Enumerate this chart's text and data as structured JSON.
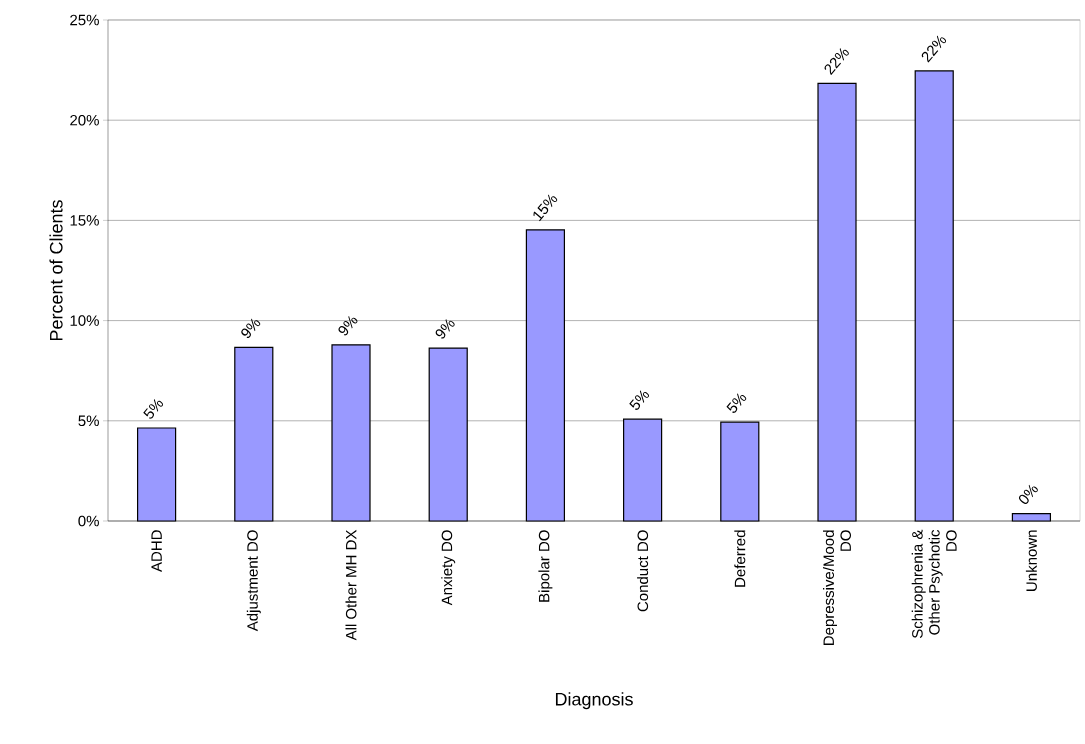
{
  "chart_data": {
    "type": "bar",
    "xlabel": "Diagnosis",
    "ylabel": "Percent of Clients",
    "categories": [
      "ADHD",
      "Adjustment DO",
      "All Other MH DX",
      "Anxiety DO",
      "Bipolar DO",
      "Conduct DO",
      "Deferred",
      "Depressive/Mood DO",
      "Schizophrenia & Other Psychotic DO",
      "Unknown"
    ],
    "values": [
      4.64,
      8.66,
      8.79,
      8.63,
      14.53,
      5.08,
      4.93,
      21.84,
      22.46,
      0.37
    ],
    "value_labels": [
      "5%",
      "9%",
      "9%",
      "9%",
      "15%",
      "5%",
      "5%",
      "22%",
      "22%",
      "0%"
    ],
    "color": "#9999ff",
    "ylim": [
      0,
      25
    ],
    "yticks": [
      {
        "value": 0,
        "label": "0%"
      },
      {
        "value": 5,
        "label": "5%"
      },
      {
        "value": 10,
        "label": "10%"
      },
      {
        "value": 15,
        "label": "15%"
      },
      {
        "value": 20,
        "label": "20%"
      },
      {
        "value": 25,
        "label": "25%"
      }
    ],
    "grid": "y"
  }
}
